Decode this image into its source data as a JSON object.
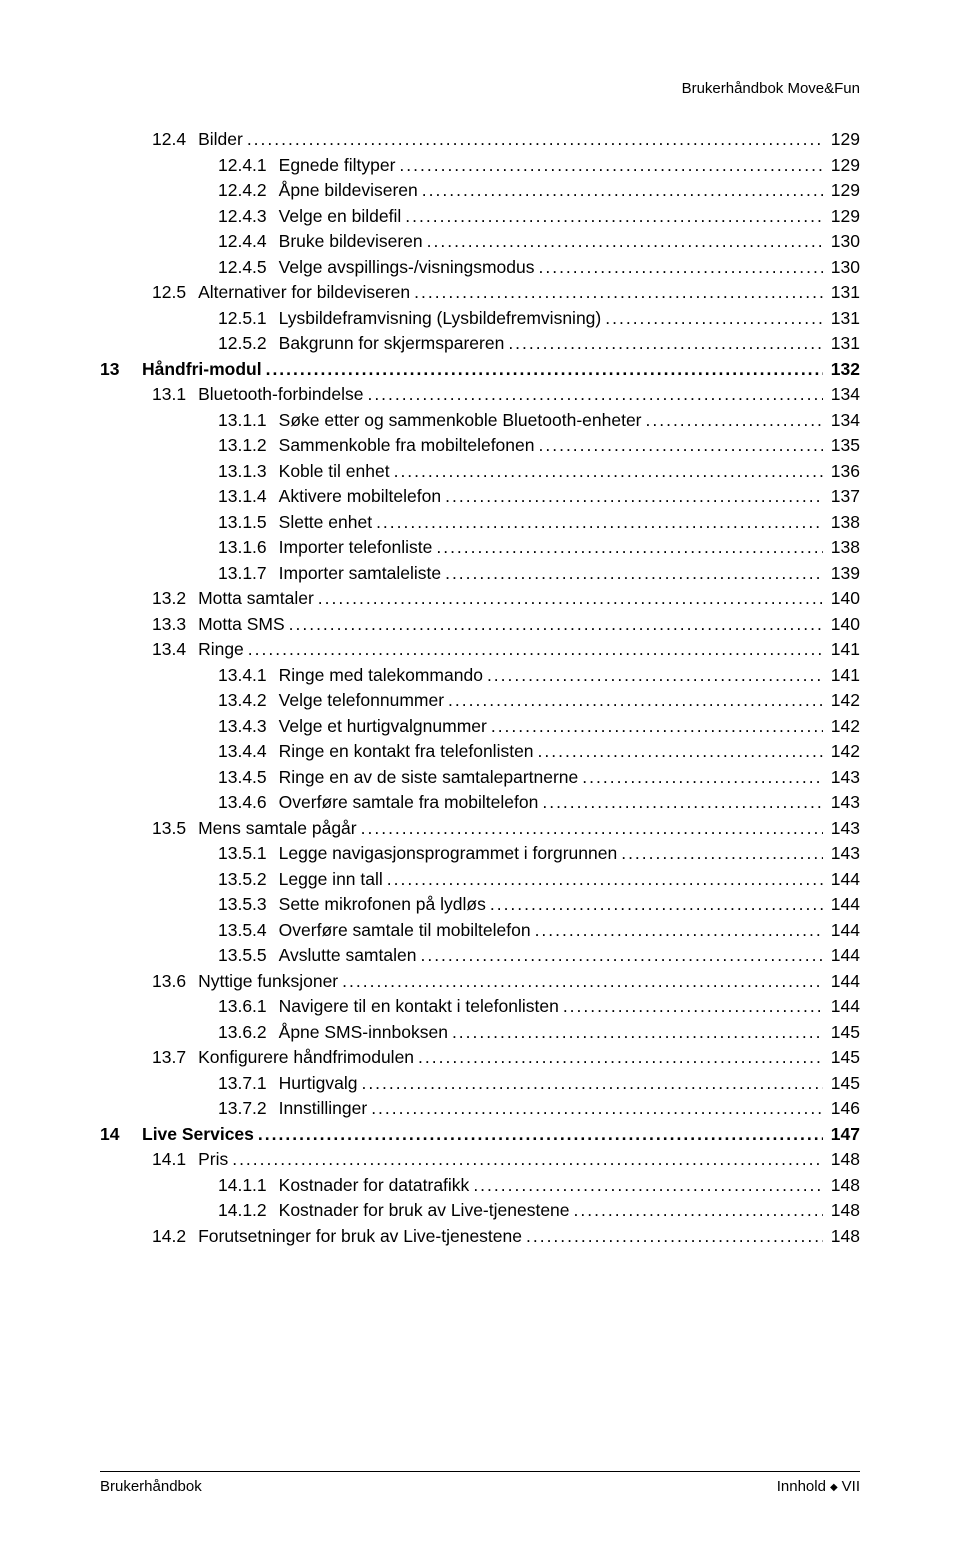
{
  "header": "Brukerhåndbok Move&Fun",
  "footer": {
    "left": "Brukerhåndbok",
    "right_prefix": "Innhold",
    "right_page": "VII"
  },
  "fonts": {
    "body_pt": 17,
    "family": "Arial"
  },
  "colors": {
    "text": "#000000",
    "background": "#ffffff",
    "rule": "#000000"
  },
  "toc": [
    {
      "level": 2,
      "num": "12.4",
      "title": "Bilder",
      "page": "129",
      "bold": false
    },
    {
      "level": 3,
      "num": "12.4.1",
      "title": "Egnede filtyper",
      "page": "129",
      "bold": false
    },
    {
      "level": 3,
      "num": "12.4.2",
      "title": "Åpne bildeviseren",
      "page": "129",
      "bold": false
    },
    {
      "level": 3,
      "num": "12.4.3",
      "title": "Velge en bildefil",
      "page": "129",
      "bold": false
    },
    {
      "level": 3,
      "num": "12.4.4",
      "title": "Bruke bildeviseren",
      "page": "130",
      "bold": false
    },
    {
      "level": 3,
      "num": "12.4.5",
      "title": "Velge avspillings-/visningsmodus",
      "page": "130",
      "bold": false
    },
    {
      "level": 2,
      "num": "12.5",
      "title": "Alternativer for bildeviseren",
      "page": "131",
      "bold": false
    },
    {
      "level": 3,
      "num": "12.5.1",
      "title": "Lysbildeframvisning (Lysbildefremvisning)",
      "page": "131",
      "bold": false
    },
    {
      "level": 3,
      "num": "12.5.2",
      "title": "Bakgrunn for skjermspareren",
      "page": "131",
      "bold": false
    },
    {
      "level": 1,
      "num": "13",
      "title": "Håndfri-modul",
      "page": "132",
      "bold": true
    },
    {
      "level": 2,
      "num": "13.1",
      "title": "Bluetooth-forbindelse",
      "page": "134",
      "bold": false
    },
    {
      "level": 3,
      "num": "13.1.1",
      "title": "Søke etter og sammenkoble Bluetooth-enheter",
      "page": "134",
      "bold": false
    },
    {
      "level": 3,
      "num": "13.1.2",
      "title": "Sammenkoble fra mobiltelefonen",
      "page": "135",
      "bold": false
    },
    {
      "level": 3,
      "num": "13.1.3",
      "title": "Koble til enhet",
      "page": "136",
      "bold": false
    },
    {
      "level": 3,
      "num": "13.1.4",
      "title": "Aktivere mobiltelefon",
      "page": "137",
      "bold": false
    },
    {
      "level": 3,
      "num": "13.1.5",
      "title": "Slette enhet",
      "page": "138",
      "bold": false
    },
    {
      "level": 3,
      "num": "13.1.6",
      "title": "Importer telefonliste",
      "page": "138",
      "bold": false
    },
    {
      "level": 3,
      "num": "13.1.7",
      "title": "Importer samtaleliste",
      "page": "139",
      "bold": false
    },
    {
      "level": 2,
      "num": "13.2",
      "title": "Motta samtaler",
      "page": "140",
      "bold": false
    },
    {
      "level": 2,
      "num": "13.3",
      "title": "Motta SMS",
      "page": "140",
      "bold": false
    },
    {
      "level": 2,
      "num": "13.4",
      "title": "Ringe",
      "page": "141",
      "bold": false
    },
    {
      "level": 3,
      "num": "13.4.1",
      "title": "Ringe med talekommando",
      "page": "141",
      "bold": false
    },
    {
      "level": 3,
      "num": "13.4.2",
      "title": "Velge telefonnummer",
      "page": "142",
      "bold": false
    },
    {
      "level": 3,
      "num": "13.4.3",
      "title": "Velge et hurtigvalgnummer",
      "page": "142",
      "bold": false
    },
    {
      "level": 3,
      "num": "13.4.4",
      "title": "Ringe en kontakt fra telefonlisten",
      "page": "142",
      "bold": false
    },
    {
      "level": 3,
      "num": "13.4.5",
      "title": "Ringe en av de siste samtalepartnerne",
      "page": "143",
      "bold": false
    },
    {
      "level": 3,
      "num": "13.4.6",
      "title": "Overføre samtale fra mobiltelefon",
      "page": "143",
      "bold": false
    },
    {
      "level": 2,
      "num": "13.5",
      "title": "Mens samtale pågår",
      "page": "143",
      "bold": false
    },
    {
      "level": 3,
      "num": "13.5.1",
      "title": "Legge navigasjonsprogrammet i forgrunnen",
      "page": "143",
      "bold": false
    },
    {
      "level": 3,
      "num": "13.5.2",
      "title": "Legge inn tall",
      "page": "144",
      "bold": false
    },
    {
      "level": 3,
      "num": "13.5.3",
      "title": "Sette mikrofonen på lydløs",
      "page": "144",
      "bold": false
    },
    {
      "level": 3,
      "num": "13.5.4",
      "title": "Overføre samtale til mobiltelefon",
      "page": "144",
      "bold": false
    },
    {
      "level": 3,
      "num": "13.5.5",
      "title": "Avslutte samtalen",
      "page": "144",
      "bold": false
    },
    {
      "level": 2,
      "num": "13.6",
      "title": "Nyttige funksjoner",
      "page": "144",
      "bold": false
    },
    {
      "level": 3,
      "num": "13.6.1",
      "title": "Navigere til en kontakt i telefonlisten",
      "page": "144",
      "bold": false
    },
    {
      "level": 3,
      "num": "13.6.2",
      "title": "Åpne SMS-innboksen",
      "page": "145",
      "bold": false
    },
    {
      "level": 2,
      "num": "13.7",
      "title": "Konfigurere håndfrimodulen",
      "page": "145",
      "bold": false
    },
    {
      "level": 3,
      "num": "13.7.1",
      "title": "Hurtigvalg",
      "page": "145",
      "bold": false
    },
    {
      "level": 3,
      "num": "13.7.2",
      "title": "Innstillinger",
      "page": "146",
      "bold": false
    },
    {
      "level": 1,
      "num": "14",
      "title": "Live Services",
      "page": "147",
      "bold": true
    },
    {
      "level": 2,
      "num": "14.1",
      "title": "Pris",
      "page": "148",
      "bold": false
    },
    {
      "level": 3,
      "num": "14.1.1",
      "title": "Kostnader for datatrafikk",
      "page": "148",
      "bold": false
    },
    {
      "level": 3,
      "num": "14.1.2",
      "title": "Kostnader for bruk av Live-tjenestene",
      "page": "148",
      "bold": false
    },
    {
      "level": 2,
      "num": "14.2",
      "title": "Forutsetninger for bruk av Live-tjenestene",
      "page": "148",
      "bold": false
    }
  ]
}
